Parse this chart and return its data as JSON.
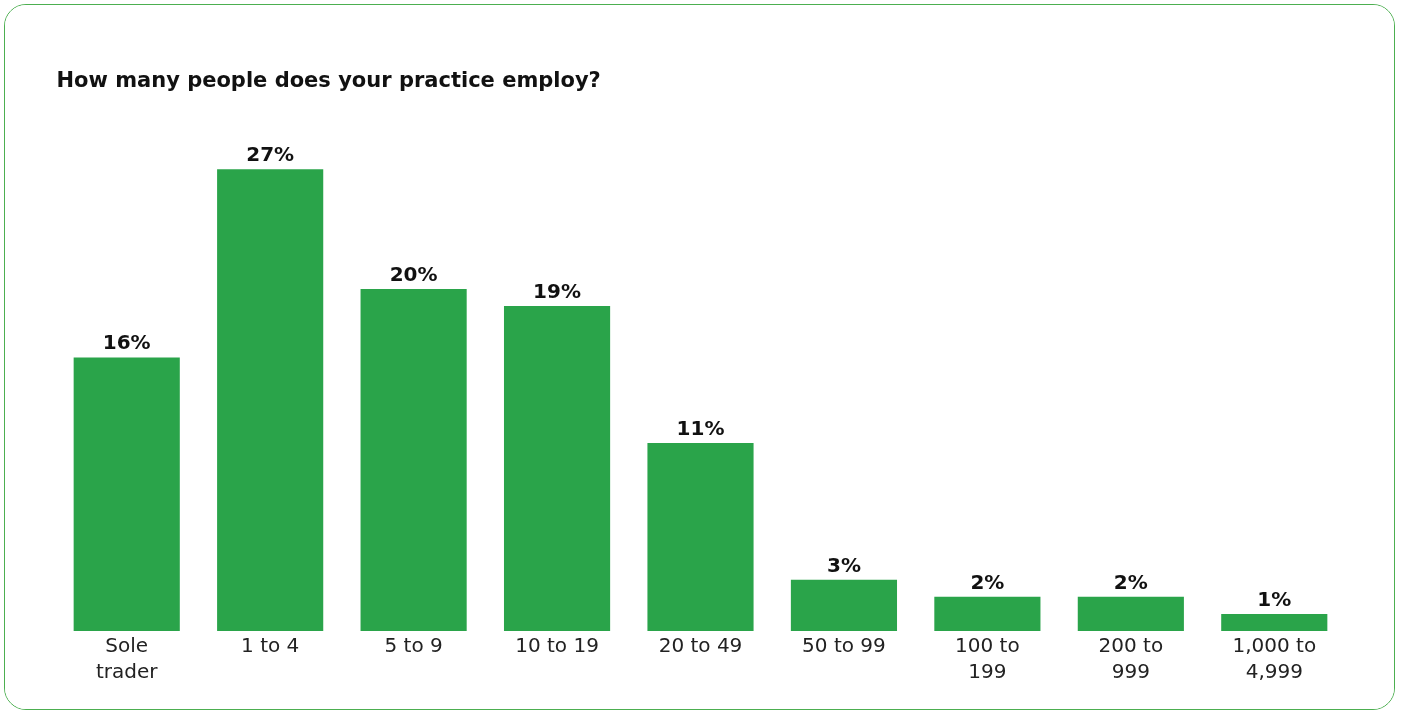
{
  "chart_data": {
    "type": "bar",
    "title": "How many people does your practice employ?",
    "categories": [
      "Sole trader",
      "1 to 4",
      "5 to 9",
      "10 to 19",
      "20 to 49",
      "50 to 99",
      "100 to 199",
      "200 to 999",
      "1,000 to 4,999"
    ],
    "values": [
      16,
      27,
      20,
      19,
      11,
      3,
      2,
      2,
      1
    ],
    "value_labels": [
      "16%",
      "27%",
      "20%",
      "19%",
      "11%",
      "3%",
      "2%",
      "2%",
      "1%"
    ],
    "color": "#2aa44a",
    "grid": false
  }
}
